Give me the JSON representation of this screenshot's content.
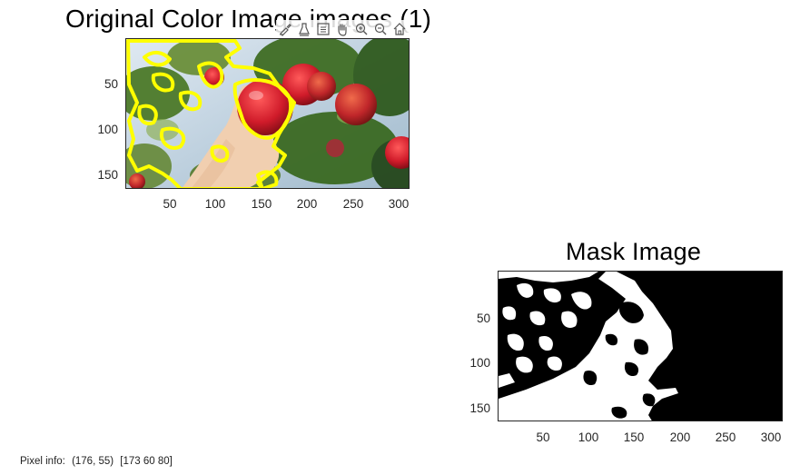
{
  "figure": {
    "left_axes": {
      "title": "Original Color Image  images (1)",
      "yticks": [
        "50",
        "100",
        "150"
      ],
      "xticks": [
        "50",
        "100",
        "150",
        "200",
        "250",
        "300"
      ]
    },
    "right_axes": {
      "title": "Mask Image",
      "yticks": [
        "50",
        "100",
        "150"
      ],
      "xticks": [
        "50",
        "100",
        "150",
        "200",
        "250",
        "300"
      ]
    },
    "toolbar": [
      {
        "name": "brush-icon"
      },
      {
        "name": "data-tips-icon"
      },
      {
        "name": "legend-icon"
      },
      {
        "name": "pan-hand-icon"
      },
      {
        "name": "zoom-in-icon"
      },
      {
        "name": "zoom-out-icon"
      },
      {
        "name": "home-icon"
      }
    ]
  },
  "status": {
    "label": "Pixel info:",
    "coords": "(176, 55)",
    "rgb": "[173 60 80]"
  },
  "colors": {
    "outline": "#ffff00",
    "mask_fg": "#ffffff",
    "mask_bg": "#000000"
  }
}
